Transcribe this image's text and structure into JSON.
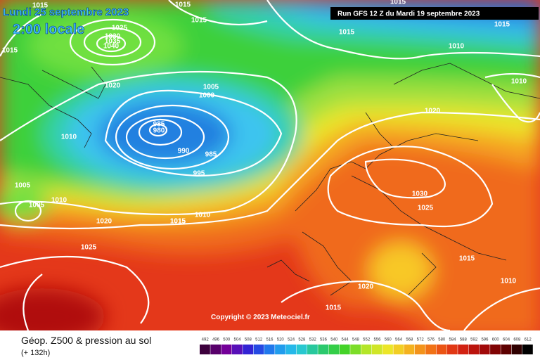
{
  "header": {
    "date": "Lundi 25 septembre 2023",
    "time": "2:00 locale",
    "run": "Run GFS 12 Z du Mardi 19 septembre 2023"
  },
  "isobar_labels": [
    "1015",
    "1015",
    "1015",
    "1025",
    "1030",
    "1035",
    "1040",
    "1015",
    "1020",
    "1015",
    "1015",
    "1010",
    "1015",
    "1010",
    "1005",
    "1000",
    "1010",
    "985",
    "980",
    "990",
    "985",
    "995",
    "1020",
    "1005",
    "1005",
    "1010",
    "1020",
    "1010",
    "1015",
    "1025",
    "1015",
    "1030",
    "1025",
    "1015",
    "1010",
    "1020",
    "1015"
  ],
  "copyright": "Copyright © 2023 Meteociel.fr",
  "footer": {
    "title": "Géop. Z500 & pression au sol",
    "lead": "(+ 132h)"
  },
  "scale": {
    "labels": [
      492,
      496,
      500,
      504,
      508,
      512,
      516,
      520,
      524,
      528,
      532,
      536,
      540,
      544,
      548,
      552,
      556,
      560,
      564,
      568,
      572,
      576,
      580,
      584,
      588,
      592,
      596,
      600,
      604,
      608,
      612
    ]
  }
}
